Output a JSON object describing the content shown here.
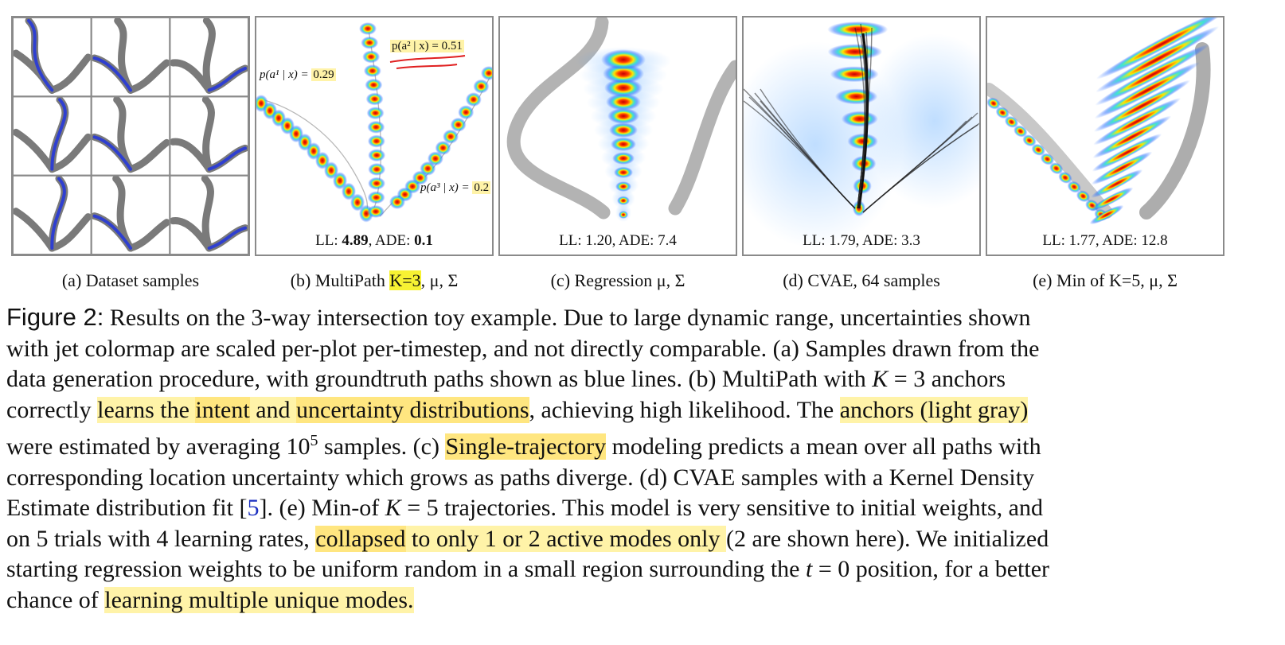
{
  "panels": [
    {
      "caption": "(a) Dataset samples",
      "stat": ""
    },
    {
      "caption_pre": "(b) MultiPath ",
      "caption_hl": "K=3",
      "caption_post": ", μ, Σ",
      "stat_pre": "LL: ",
      "stat_ll": "4.89",
      "stat_mid": ", ADE: ",
      "stat_ade": "0.1",
      "annotations": {
        "a1_label": "p(a¹ | x) = ",
        "a1_value": "0.29",
        "a2_label": "p(a² | x) = 0.51",
        "a3_label": "p(a³ | x) = ",
        "a3_value": "0.2"
      }
    },
    {
      "caption": "(c) Regression μ, Σ",
      "stat": "LL: 1.20, ADE: 7.4"
    },
    {
      "caption": "(d) CVAE, 64 samples",
      "stat": "LL: 1.79, ADE: 3.3"
    },
    {
      "caption": "(e) Min of K=5, μ, Σ",
      "stat": "LL: 1.77, ADE: 12.8"
    }
  ],
  "figure": {
    "label": "Figure 2:",
    "lines": [
      [
        {
          "t": " Results on the 3-way intersection toy example. Due to large dynamic range, uncertainties shown"
        }
      ],
      [
        {
          "t": "with jet colormap are scaled per-plot per-timestep, and not directly comparable. (a) Samples drawn from the"
        }
      ],
      [
        {
          "t": "data generation procedure, with groundtruth paths shown as blue lines. (b) MultiPath with "
        },
        {
          "t": "K",
          "i": true
        },
        {
          "t": " = 3 anchors"
        }
      ],
      [
        {
          "t": "correctly "
        },
        {
          "t": "learns the ",
          "h": 1
        },
        {
          "t": "intent",
          "h": 2
        },
        {
          "t": " and ",
          "h": 1
        },
        {
          "t": "uncertainty distributions",
          "h": 2
        },
        {
          "t": ", achieving high likelihood. The "
        },
        {
          "t": "anchors (light gray)",
          "h": 1
        }
      ],
      [
        {
          "t": "were estimated by averaging 10"
        },
        {
          "t": "5",
          "sup": true
        },
        {
          "t": " samples. (c) "
        },
        {
          "t": "Single-trajectory",
          "h": 2
        },
        {
          "t": " modeling predicts a mean over all paths with"
        }
      ],
      [
        {
          "t": "corresponding location uncertainty which grows as paths diverge. (d) CVAE samples with a Kernel Density"
        }
      ],
      [
        {
          "t": "Estimate distribution fit ["
        },
        {
          "t": "5",
          "link": true
        },
        {
          "t": "]. (e) Min-of "
        },
        {
          "t": "K",
          "i": true
        },
        {
          "t": " = 5 trajectories. This model is very sensitive to initial weights, and"
        }
      ],
      [
        {
          "t": "on 5 trials with 4 learning rates, "
        },
        {
          "t": "collapsed",
          "h": 2
        },
        {
          "t": " to only 1 or 2 active modes only ",
          "h": 1
        },
        {
          "t": "(2 are shown here). We initialized"
        }
      ],
      [
        {
          "t": "starting regression weights to be uniform random in a small region surrounding the "
        },
        {
          "t": "t",
          "i": true
        },
        {
          "t": " = 0 position, for a better"
        }
      ],
      [
        {
          "t": "chance of "
        },
        {
          "t": "learning multiple unique modes.",
          "h": 1
        }
      ]
    ]
  },
  "colors": {
    "groundtruth": "#2f3fd0",
    "road": "#7a7a7a",
    "highlight": "#fff3a8",
    "highlight_strong": "#ffe680",
    "k3_highlight": "#f7f233",
    "underline": "#e02020"
  }
}
